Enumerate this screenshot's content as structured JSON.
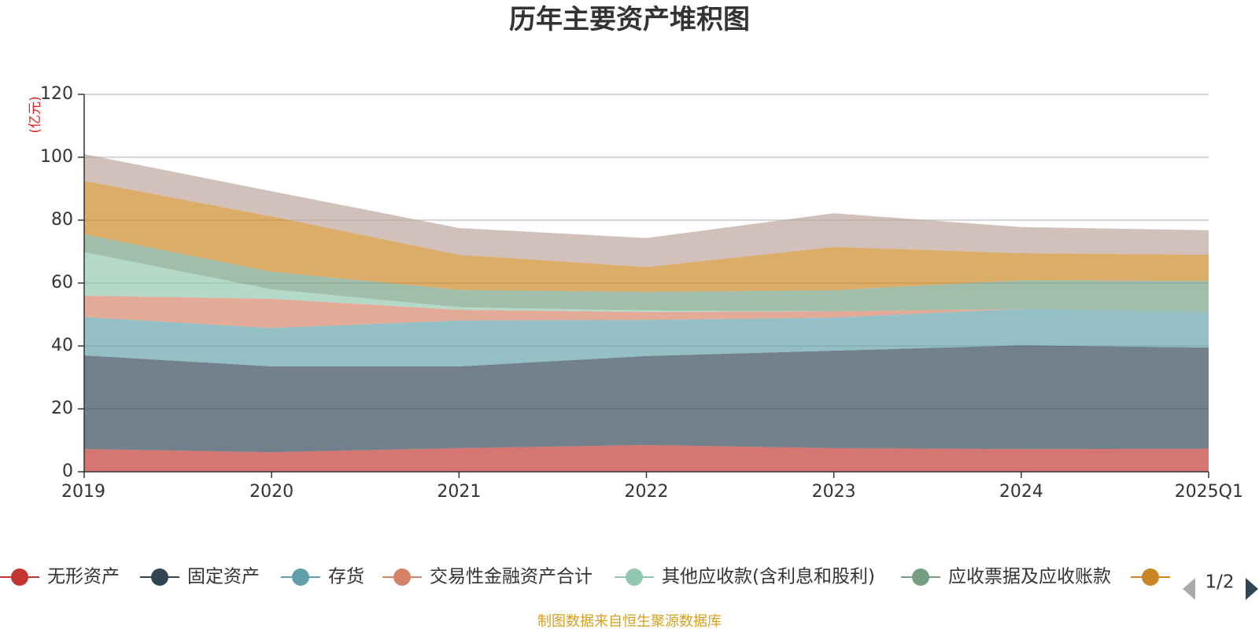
{
  "chart_data": {
    "type": "area",
    "stacked": true,
    "title": "历年主要资产堆积图",
    "unit_label": "(亿元)",
    "categories": [
      "2019",
      "2020",
      "2021",
      "2022",
      "2023",
      "2024",
      "2025Q1"
    ],
    "y_ticks": [
      "0",
      "20",
      "40",
      "60",
      "80",
      "100",
      "120"
    ],
    "ylim": [
      0,
      120
    ],
    "grid": true,
    "series": [
      {
        "name": "无形资产",
        "color": "#c23531",
        "values": [
          7.2,
          6.2,
          7.5,
          8.5,
          7.5,
          7.2,
          7.3
        ]
      },
      {
        "name": "固定资产",
        "color": "#2f4554",
        "values": [
          29.8,
          27.3,
          26.0,
          28.3,
          31.0,
          33.0,
          32.2
        ]
      },
      {
        "name": "存货",
        "color": "#61a0a8",
        "values": [
          12.2,
          12.2,
          14.6,
          11.5,
          10.5,
          11.6,
          11.3
        ]
      },
      {
        "name": "交易性金融资产合计",
        "color": "#d48265",
        "values": [
          6.8,
          9.3,
          3.4,
          2.5,
          2.0,
          0.0,
          0.0
        ]
      },
      {
        "name": "其他应收款(含利息和股利)",
        "color": "#91c7ae",
        "values": [
          13.8,
          3.0,
          0.8,
          0.5,
          0.0,
          0.0,
          0.0
        ]
      },
      {
        "name": "应收票据及应收账款",
        "color": "#749f83",
        "values": [
          5.7,
          5.6,
          5.5,
          5.9,
          6.7,
          9.1,
          9.9
        ]
      },
      {
        "name": "",
        "color": "#ca8622",
        "values": [
          17.0,
          17.6,
          11.2,
          7.9,
          13.8,
          8.6,
          8.3
        ]
      },
      {
        "name": "",
        "color": "#bda29a",
        "values": [
          8.5,
          8.0,
          8.5,
          9.2,
          10.7,
          8.3,
          7.8
        ]
      }
    ]
  },
  "legend": {
    "items": [
      {
        "label": "无形资产",
        "color": "#c23531"
      },
      {
        "label": "固定资产",
        "color": "#2f4554"
      },
      {
        "label": "存货",
        "color": "#61a0a8"
      },
      {
        "label": "交易性金融资产合计",
        "color": "#d48265"
      },
      {
        "label": "其他应收款(含利息和股利)",
        "color": "#91c7ae"
      },
      {
        "label": "应收票据及应收账款",
        "color": "#749f83"
      },
      {
        "label": "",
        "color": "#ca8622"
      }
    ],
    "page_indicator": "1/2",
    "prev_icon": "triangle-left-icon",
    "next_icon": "triangle-right-icon"
  },
  "source_note": "制图数据来自恒生聚源数据库"
}
